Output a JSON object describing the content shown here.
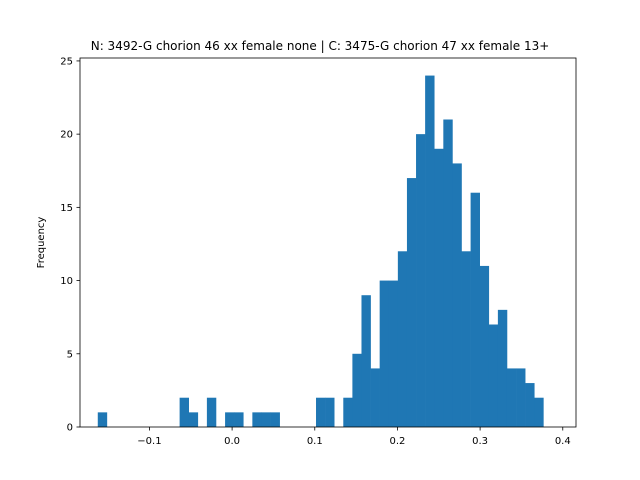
{
  "chart_data": {
    "type": "bar",
    "title": "N: 3492-G chorion 46 xx female none | C: 3475-G chorion 47 xx female 13+",
    "xlabel": "",
    "ylabel": "Frequency",
    "xlim": [
      -0.184,
      0.416
    ],
    "ylim": [
      0,
      25.2
    ],
    "x_ticks": [
      -0.1,
      0.0,
      0.1,
      0.2,
      0.3,
      0.4
    ],
    "x_tick_labels": [
      "−0.1",
      "0.0",
      "0.1",
      "0.2",
      "0.3",
      "0.4"
    ],
    "y_ticks": [
      0,
      5,
      10,
      15,
      20,
      25
    ],
    "y_tick_labels": [
      "0",
      "5",
      "10",
      "15",
      "20",
      "25"
    ],
    "bar_color": "#1f77b4",
    "grid": false,
    "bins_start": -0.1625,
    "bin_width": 0.011,
    "values": [
      1,
      0,
      0,
      0,
      0,
      0,
      0,
      0,
      0,
      2,
      1,
      0,
      2,
      0,
      1,
      1,
      0,
      1,
      1,
      1,
      0,
      0,
      0,
      0,
      2,
      2,
      0,
      2,
      5,
      9,
      4,
      10,
      10,
      12,
      17,
      20,
      24,
      19,
      21,
      18,
      12,
      16,
      11,
      7,
      8,
      4,
      4,
      3,
      2
    ]
  }
}
